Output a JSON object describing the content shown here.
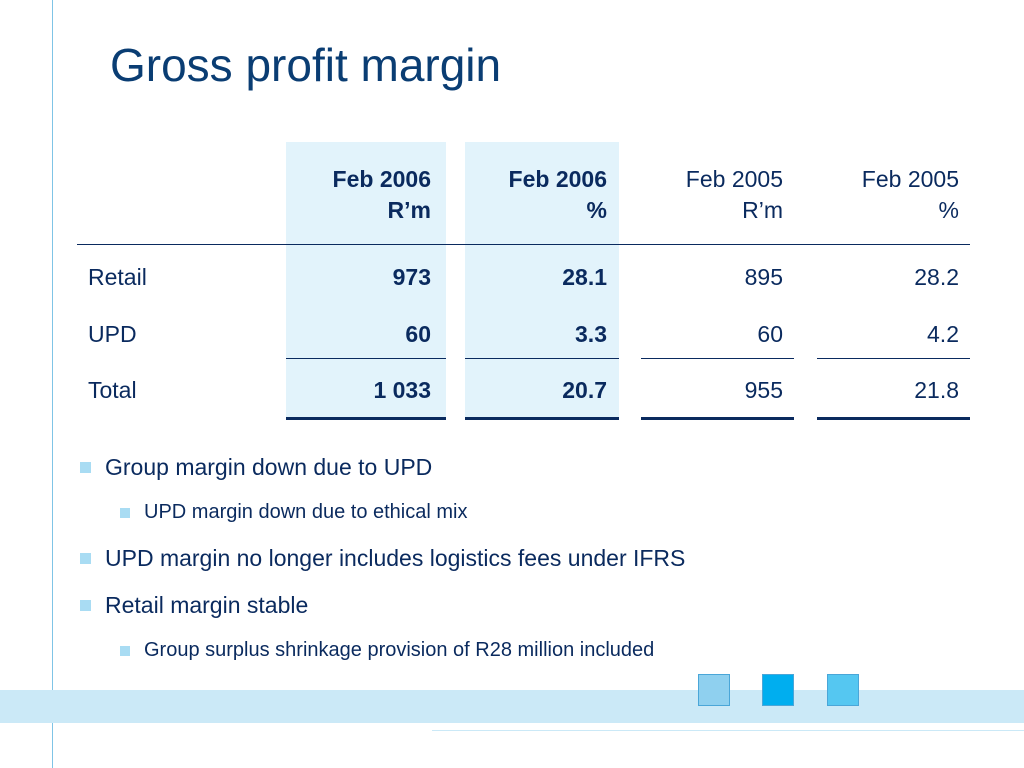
{
  "title": "Gross profit margin",
  "table": {
    "headers": [
      {
        "line1": "Feb 2006",
        "line2": "R’m"
      },
      {
        "line1": "Feb 2006",
        "line2": "%"
      },
      {
        "line1": "Feb 2005",
        "line2": "R’m"
      },
      {
        "line1": "Feb 2005",
        "line2": "%"
      }
    ],
    "rows": [
      {
        "label": "Retail",
        "values": [
          "973",
          "28.1",
          "895",
          "28.2"
        ]
      },
      {
        "label": "UPD",
        "values": [
          "60",
          "3.3",
          "60",
          "4.2"
        ]
      },
      {
        "label": "Total",
        "values": [
          "1 033",
          "20.7",
          "955",
          "21.8"
        ]
      }
    ]
  },
  "bullets": [
    {
      "text": "Group margin down due to UPD",
      "level": 1
    },
    {
      "text": "UPD margin down due to ethical mix",
      "level": 2
    },
    {
      "text": "UPD margin no longer includes logistics fees under IFRS",
      "level": 1
    },
    {
      "text": "Retail margin stable",
      "level": 1
    },
    {
      "text": "Group surplus shrinkage provision of R28 million included",
      "level": 2
    }
  ],
  "colors": {
    "title": "#0a3d73",
    "text": "#0a2a5e",
    "column_shade": "#e2f3fb",
    "accent_light": "#cbe9f7",
    "deco_squares": [
      "#8fd0ef",
      "#00aeef",
      "#55c7f1"
    ]
  }
}
